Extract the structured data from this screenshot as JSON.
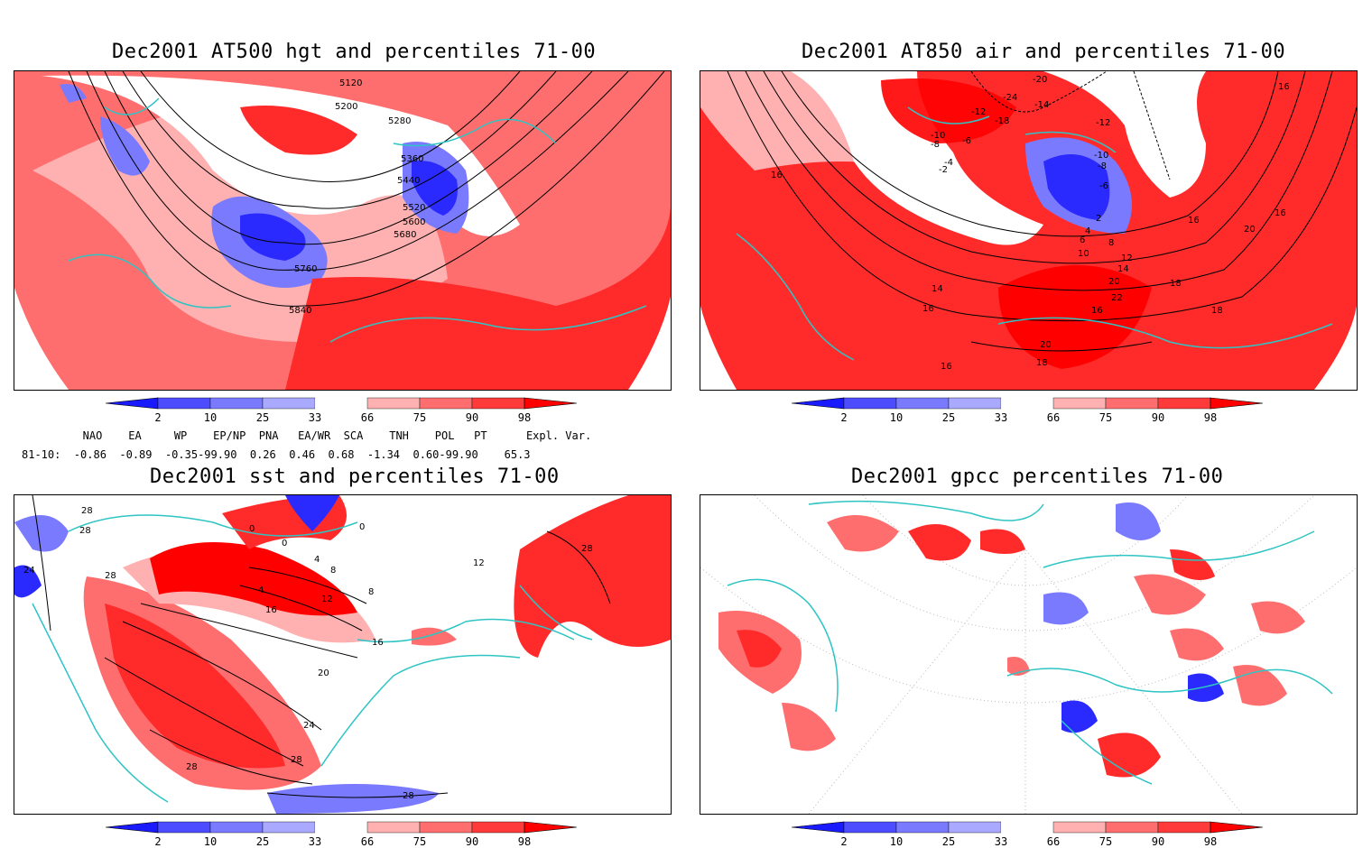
{
  "panels": [
    {
      "title": "Dec2001 AT500 hgt and percentiles 71-00",
      "contour_labels": [
        "5120",
        "5200",
        "5280",
        "5360",
        "5440",
        "5520",
        "5600",
        "5680",
        "5760",
        "5840"
      ]
    },
    {
      "title": "Dec2001 AT850 air and percentiles 71-00",
      "contour_labels": [
        "-20",
        "-24",
        "-12",
        "-18",
        "-14",
        "-10",
        "-8",
        "-6",
        "-4",
        "-2",
        "-12",
        "-10",
        "-8",
        "-6",
        "2",
        "4",
        "6",
        "8",
        "10",
        "12",
        "14",
        "16",
        "18",
        "20",
        "22",
        "16",
        "18",
        "20",
        "16",
        "20",
        "18",
        "16",
        "14",
        "16",
        "16",
        "16"
      ]
    },
    {
      "title": "Dec2001 sst and percentiles 71-00",
      "contour_labels": [
        "28",
        "24",
        "28",
        "28",
        "0",
        "0",
        "0",
        "4",
        "8",
        "4",
        "12",
        "16",
        "16",
        "20",
        "24",
        "28",
        "28",
        "28",
        "8",
        "12",
        "28"
      ]
    },
    {
      "title": "Dec2001 gpcc percentiles 71-00",
      "contour_labels": []
    }
  ],
  "colorbar": {
    "ticks": [
      "2",
      "10",
      "25",
      "33",
      "66",
      "75",
      "90",
      "98"
    ],
    "colors": [
      "#1a1aff",
      "#4d4dff",
      "#7a7aff",
      "#a9a9ff",
      "#ffffff",
      "#ffb0b0",
      "#ff6e6e",
      "#ff3a3a",
      "#ff0000"
    ]
  },
  "indices": {
    "header": "   NAO    EA     WP    EP/NP  PNA   EA/WR  SCA    TNH    POL   PT      Expl. Var.",
    "row": "81-10:  -0.86  -0.89  -0.35-99.90  0.26  0.46  0.68  -1.34  0.60-99.90    65.3"
  },
  "colors": {
    "coast": "#2ec4c4",
    "warm": "#ff2b2b",
    "cold": "#2a2aff"
  }
}
